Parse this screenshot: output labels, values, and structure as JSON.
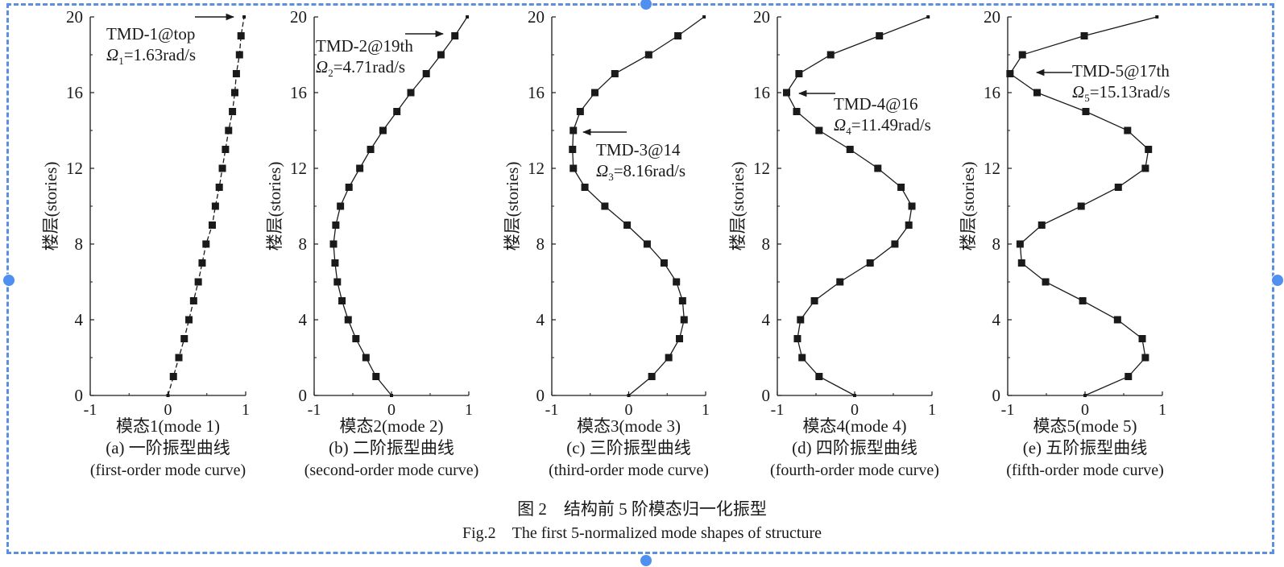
{
  "figure": {
    "caption_zh": "图 2　结构前 5 阶模态归一化振型",
    "caption_en": "Fig.2　The first 5-normalized mode shapes of structure"
  },
  "chart_data": [
    {
      "type": "line",
      "xlabel": "模态1(mode 1)",
      "ylabel": "楼层(stories)",
      "caption_zh": "(a) 一阶振型曲线",
      "caption_en": "(first-order mode curve)",
      "xlim": [
        -1,
        1
      ],
      "ylim": [
        0,
        20
      ],
      "xticks": [
        "-1",
        "0",
        "1"
      ],
      "yticks": [
        "0",
        "4",
        "8",
        "12",
        "16",
        "20"
      ],
      "grid": false,
      "stories": [
        0,
        1,
        2,
        3,
        4,
        5,
        6,
        7,
        8,
        9,
        10,
        11,
        12,
        13,
        14,
        15,
        16,
        17,
        18,
        19,
        20
      ],
      "values": [
        0,
        0.07,
        0.14,
        0.21,
        0.27,
        0.33,
        0.39,
        0.44,
        0.49,
        0.57,
        0.61,
        0.66,
        0.7,
        0.74,
        0.78,
        0.83,
        0.86,
        0.88,
        0.92,
        0.94,
        0.98
      ],
      "annotation": {
        "label": "TMD-1@top",
        "omega_symbol": "Ω",
        "omega_sub": "1",
        "omega_value": "=1.63rad/s",
        "story": 20
      }
    },
    {
      "type": "line",
      "xlabel": "模态2(mode 2)",
      "ylabel": "楼层(stories)",
      "caption_zh": "(b) 二阶振型曲线",
      "caption_en": "(second-order mode curve)",
      "xlim": [
        -1,
        1
      ],
      "ylim": [
        0,
        20
      ],
      "xticks": [
        "-1",
        "0",
        "1"
      ],
      "yticks": [
        "0",
        "4",
        "8",
        "12",
        "16",
        "20"
      ],
      "grid": false,
      "stories": [
        0,
        1,
        2,
        3,
        4,
        5,
        6,
        7,
        8,
        9,
        10,
        11,
        12,
        13,
        14,
        15,
        16,
        17,
        18,
        19,
        20
      ],
      "values": [
        0,
        -0.2,
        -0.33,
        -0.46,
        -0.56,
        -0.64,
        -0.7,
        -0.73,
        -0.75,
        -0.72,
        -0.66,
        -0.55,
        -0.41,
        -0.27,
        -0.11,
        0.07,
        0.25,
        0.45,
        0.64,
        0.82,
        0.98
      ],
      "annotation": {
        "label": "TMD-2@19th",
        "omega_symbol": "Ω",
        "omega_sub": "2",
        "omega_value": "=4.71rad/s",
        "story": 19
      }
    },
    {
      "type": "line",
      "xlabel": "模态3(mode 3)",
      "ylabel": "楼层(stories)",
      "caption_zh": "(c) 三阶振型曲线",
      "caption_en": "(third-order mode curve)",
      "xlim": [
        -1,
        1
      ],
      "ylim": [
        0,
        20
      ],
      "xticks": [
        "-1",
        "0",
        "1"
      ],
      "yticks": [
        "0",
        "4",
        "8",
        "12",
        "16",
        "20"
      ],
      "grid": false,
      "stories": [
        0,
        1,
        2,
        3,
        4,
        5,
        6,
        7,
        8,
        9,
        10,
        11,
        12,
        13,
        14,
        15,
        16,
        17,
        18,
        19,
        20
      ],
      "values": [
        0,
        0.3,
        0.52,
        0.66,
        0.72,
        0.7,
        0.62,
        0.46,
        0.24,
        -0.02,
        -0.31,
        -0.57,
        -0.72,
        -0.73,
        -0.72,
        -0.63,
        -0.44,
        -0.18,
        0.26,
        0.64,
        0.98
      ],
      "annotation": {
        "label": "TMD-3@14",
        "omega_symbol": "Ω",
        "omega_sub": "3",
        "omega_value": "=8.16rad/s",
        "story": 14
      }
    },
    {
      "type": "line",
      "xlabel": "模态4(mode 4)",
      "ylabel": "楼层(stories)",
      "caption_zh": "(d) 四阶振型曲线",
      "caption_en": "(fourth-order mode curve)",
      "xlim": [
        -1,
        1
      ],
      "ylim": [
        0,
        20
      ],
      "xticks": [
        "-1",
        "0",
        "1"
      ],
      "yticks": [
        "0",
        "4",
        "8",
        "12",
        "16",
        "20"
      ],
      "grid": false,
      "stories": [
        0,
        1,
        2,
        3,
        4,
        5,
        6,
        7,
        8,
        9,
        10,
        11,
        12,
        13,
        14,
        15,
        16,
        17,
        18,
        19,
        20
      ],
      "values": [
        0,
        -0.46,
        -0.68,
        -0.74,
        -0.7,
        -0.52,
        -0.19,
        0.2,
        0.52,
        0.7,
        0.74,
        0.6,
        0.3,
        -0.06,
        -0.46,
        -0.75,
        -0.88,
        -0.72,
        -0.31,
        0.32,
        0.95
      ],
      "annotation": {
        "label": "TMD-4@16",
        "omega_symbol": "Ω",
        "omega_sub": "4",
        "omega_value": "=11.49rad/s",
        "story": 16
      }
    },
    {
      "type": "line",
      "xlabel": "模态5(mode 5)",
      "ylabel": "楼层(stories)",
      "caption_zh": "(e) 五阶振型曲线",
      "caption_en": "(fifth-order mode curve)",
      "xlim": [
        -1,
        1
      ],
      "ylim": [
        0,
        20
      ],
      "xticks": [
        "-1",
        "0",
        "1"
      ],
      "yticks": [
        "0",
        "4",
        "8",
        "12",
        "16",
        "20"
      ],
      "grid": false,
      "stories": [
        0,
        1,
        2,
        3,
        4,
        5,
        6,
        7,
        8,
        9,
        10,
        11,
        12,
        13,
        14,
        15,
        16,
        17,
        18,
        19,
        20
      ],
      "values": [
        0,
        0.56,
        0.78,
        0.74,
        0.42,
        -0.03,
        -0.51,
        -0.82,
        -0.84,
        -0.56,
        -0.05,
        0.43,
        0.78,
        0.82,
        0.55,
        0.01,
        -0.62,
        -0.97,
        -0.81,
        -0.01,
        0.93
      ],
      "annotation": {
        "label": "TMD-5@17th",
        "omega_symbol": "Ω",
        "omega_sub": "5",
        "omega_value": "=15.13rad/s",
        "story": 17
      }
    }
  ]
}
